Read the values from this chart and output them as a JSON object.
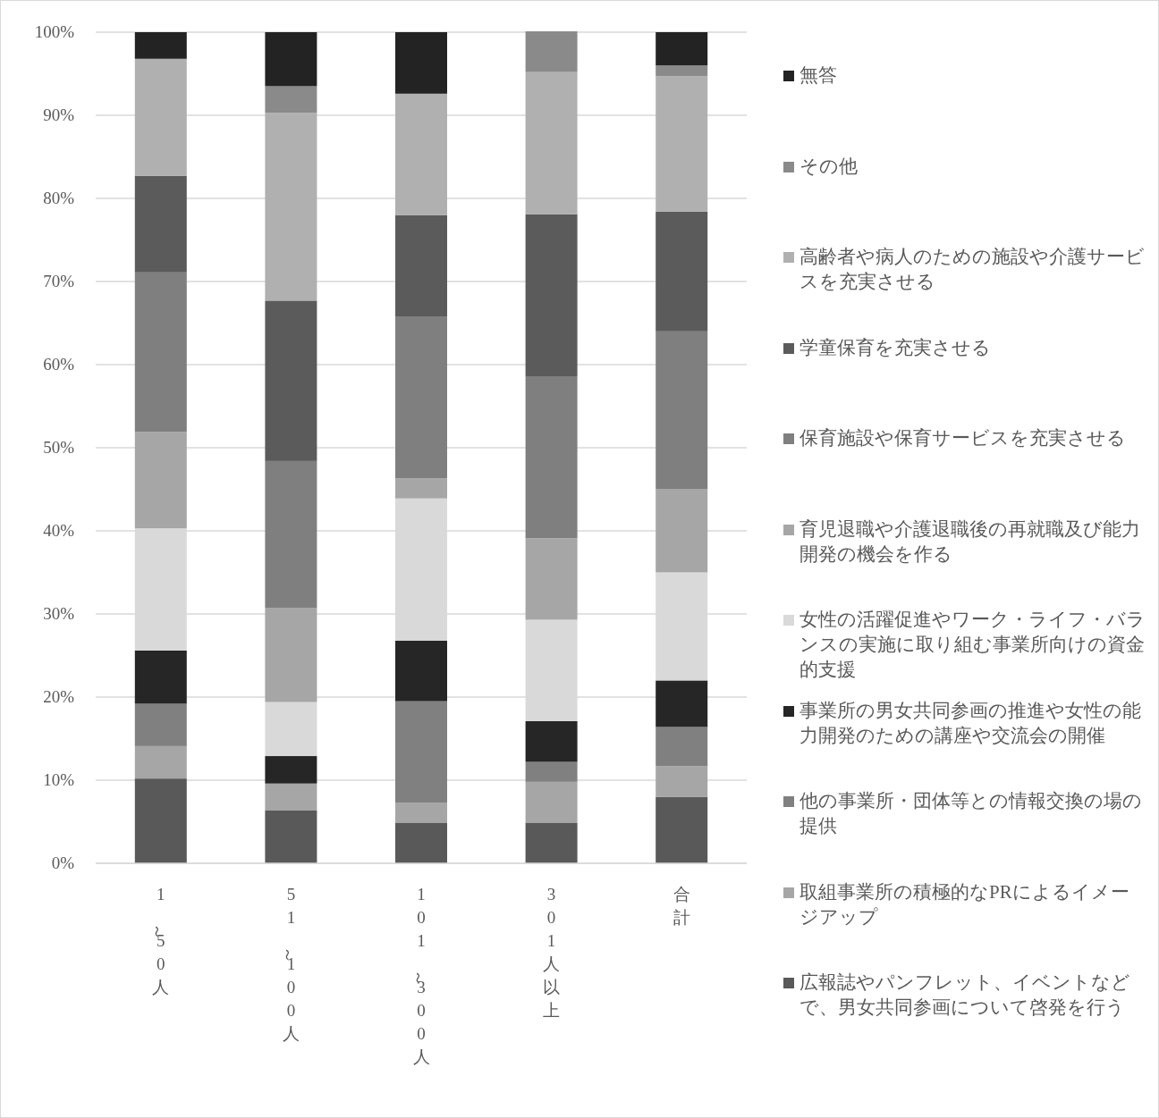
{
  "chart_data": {
    "type": "bar",
    "stacked": true,
    "categories": [
      "1～50人",
      "51～100人",
      "101～300人",
      "301人以上",
      "合計"
    ],
    "ylim": [
      0,
      100
    ],
    "yticks": [
      {
        "value": 0,
        "label": "0%"
      },
      {
        "value": 10,
        "label": "10%"
      },
      {
        "value": 20,
        "label": "20%"
      },
      {
        "value": 30,
        "label": "30%"
      },
      {
        "value": 40,
        "label": "40%"
      },
      {
        "value": 50,
        "label": "50%"
      },
      {
        "value": 60,
        "label": "60%"
      },
      {
        "value": 70,
        "label": "70%"
      },
      {
        "value": 80,
        "label": "80%"
      },
      {
        "value": 90,
        "label": "90%"
      },
      {
        "value": 100,
        "label": "100%"
      }
    ],
    "grid": "y",
    "legend": "right",
    "series": [
      {
        "name": "広報誌やパンフレット、イベントなどで、男女共同参画について啓発を行う",
        "color": "#595959",
        "values": [
          10.2,
          6.4,
          4.9,
          4.9,
          8.0
        ]
      },
      {
        "name": "取組事業所の積極的なPRによるイメージアップ",
        "color": "#a6a6a6",
        "values": [
          3.9,
          3.2,
          2.4,
          4.9,
          3.7
        ]
      },
      {
        "name": "他の事業所・団体等との情報交換の場の提供",
        "color": "#808080",
        "values": [
          5.1,
          0,
          12.2,
          2.4,
          4.7
        ]
      },
      {
        "name": "事業所の男女共同参画の推進や女性の能力開発のための講座や交流会の開催",
        "color": "#262626",
        "values": [
          6.4,
          3.3,
          7.3,
          4.9,
          5.6
        ]
      },
      {
        "name": "女性の活躍促進やワーク・ライフ・バランスの実施に取り組む事業所向けの資金的支援",
        "color": "#d9d9d9",
        "values": [
          14.7,
          6.5,
          17.1,
          12.2,
          13.0
        ]
      },
      {
        "name": "育児退職や介護退職後の再就職及び能力開発の機会を作る",
        "color": "#a6a6a6",
        "values": [
          11.6,
          11.3,
          2.4,
          9.8,
          10.0
        ]
      },
      {
        "name": "保育施設や保育サービスを充実させる",
        "color": "#7f7f7f",
        "values": [
          19.2,
          17.7,
          19.5,
          19.5,
          19.0
        ]
      },
      {
        "name": "学童保育を充実させる",
        "color": "#5b5b5b",
        "values": [
          11.6,
          19.3,
          12.2,
          19.5,
          14.4
        ]
      },
      {
        "name": "高齢者や病人のための施設や介護サービスを充実させる",
        "color": "#b0b0b0",
        "values": [
          14.1,
          22.6,
          14.6,
          17.1,
          16.3
        ]
      },
      {
        "name": "その他",
        "color": "#8a8a8a",
        "values": [
          0,
          3.2,
          0,
          4.9,
          1.3
        ]
      },
      {
        "name": "無答",
        "color": "#232323",
        "values": [
          3.2,
          6.5,
          7.4,
          0,
          4.0
        ]
      }
    ]
  }
}
